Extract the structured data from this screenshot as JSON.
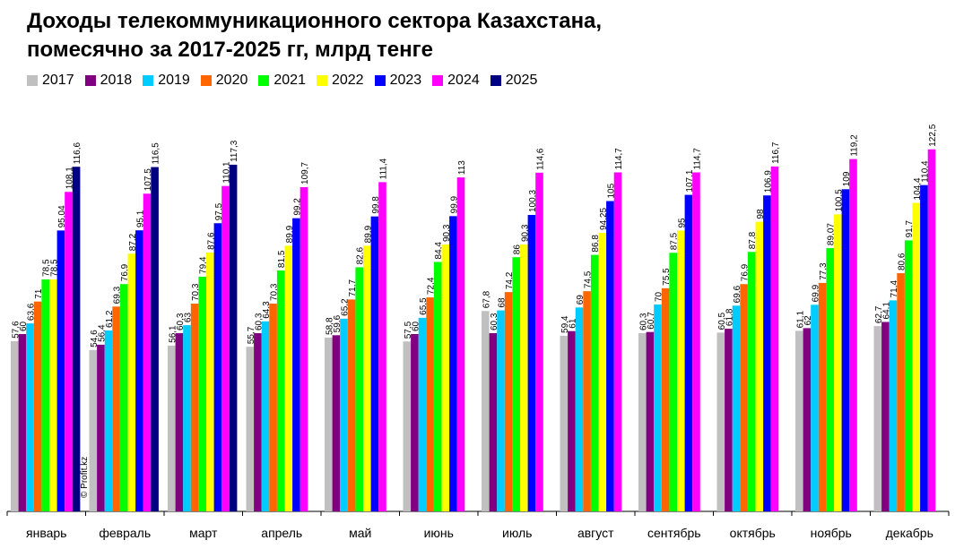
{
  "title_line1": "Доходы телекоммуникационного сектора Казахстана,",
  "title_line2": "помесячно за 2017-2025 гг, млрд тенге",
  "watermark": "© Profit.kz",
  "chart_data": {
    "type": "bar",
    "title": "Доходы телекоммуникационного сектора Казахстана, помесячно за 2017-2025 гг, млрд тенге",
    "xlabel": "",
    "ylabel": "",
    "ylim": [
      0,
      130
    ],
    "grid": false,
    "legend_position": "top-left",
    "categories": [
      "январь",
      "февраль",
      "март",
      "апрель",
      "май",
      "июнь",
      "июль",
      "август",
      "сентябрь",
      "октябрь",
      "ноябрь",
      "декабрь"
    ],
    "series": [
      {
        "name": "2017",
        "color": "#c0c0c0",
        "values": [
          57.6,
          54.6,
          56.1,
          55.7,
          58.8,
          57.5,
          67.8,
          59.4,
          60.3,
          60.5,
          61.1,
          62.7
        ],
        "labels": [
          "57,6",
          "54,6",
          "56,1",
          "55,7",
          "58,8",
          "57,5",
          "67,8",
          "59,4",
          "60,3",
          "60,5",
          "61,1",
          "62,7"
        ]
      },
      {
        "name": "2018",
        "color": "#800080",
        "values": [
          60,
          56.4,
          60.3,
          60.3,
          59.6,
          60,
          60.3,
          61,
          60.7,
          61.8,
          62,
          64.1
        ],
        "labels": [
          "60",
          "56,4",
          "60,3",
          "60,3",
          "59,6",
          "60",
          "60,3",
          "61",
          "60,7",
          "61,8",
          "62",
          "64,1"
        ]
      },
      {
        "name": "2019",
        "color": "#00ccff",
        "values": [
          63.6,
          61.2,
          63,
          64.3,
          65.2,
          65.5,
          68,
          69,
          70,
          69.6,
          69.9,
          71.4
        ],
        "labels": [
          "63,6",
          "61,2",
          "63",
          "64,3",
          "65,2",
          "65,5",
          "68",
          "69",
          "70",
          "69,6",
          "69,9",
          "71,4"
        ]
      },
      {
        "name": "2020",
        "color": "#ff6600",
        "values": [
          71,
          69.3,
          70.3,
          70.3,
          71.7,
          72.4,
          74.2,
          74.5,
          75.5,
          76.9,
          77.3,
          80.6
        ],
        "labels": [
          "71",
          "69,3",
          "70,3",
          "70,3",
          "71,7",
          "72,4",
          "74,2",
          "74,5",
          "75,5",
          "76,9",
          "77,3",
          "80,6"
        ]
      },
      {
        "name": "2021",
        "color": "#00ff00",
        "values": [
          78.5,
          76.9,
          79.4,
          81.5,
          82.6,
          84.4,
          86,
          86.8,
          87.5,
          87.8,
          89.07,
          91.7
        ],
        "labels": [
          "78,5",
          "76,9",
          "79,4",
          "81,5",
          "82,6",
          "84,4",
          "86",
          "86,8",
          "87,5",
          "87,8",
          "89,07",
          "91,7"
        ]
      },
      {
        "name": "2022",
        "color": "#ffff00",
        "values": [
          78.5,
          87.2,
          87.6,
          89.9,
          89.9,
          90.3,
          90.3,
          94.25,
          95,
          98,
          100.5,
          104.4
        ],
        "labels": [
          "78,5",
          "87,2",
          "87,6",
          "89,9",
          "89,9",
          "90,3",
          "90,3",
          "94,25",
          "95",
          "98",
          "100,5",
          "104,4"
        ]
      },
      {
        "name": "2023",
        "color": "#0000ff",
        "values": [
          95.04,
          95.1,
          97.5,
          99.2,
          99.8,
          99.9,
          100.3,
          105,
          107.1,
          106.9,
          109,
          110.4
        ],
        "labels": [
          "95,04",
          "95,1",
          "97,5",
          "99,2",
          "99,8",
          "99,9",
          "100,3",
          "105",
          "107,1",
          "106,9",
          "109",
          "110,4"
        ]
      },
      {
        "name": "2024",
        "color": "#ff00ff",
        "values": [
          108.1,
          107.5,
          110.1,
          109.7,
          111.4,
          113,
          114.6,
          114.7,
          114.7,
          116.7,
          119.2,
          122.5
        ],
        "labels": [
          "108,1",
          "107,5",
          "110,1",
          "109,7",
          "111,4",
          "113",
          "114,6",
          "114,7",
          "114,7",
          "116,7",
          "119,2",
          "122,5"
        ]
      },
      {
        "name": "2025",
        "color": "#000080",
        "values": [
          116.6,
          116.5,
          117.3,
          null,
          null,
          null,
          null,
          null,
          null,
          null,
          null,
          null
        ],
        "labels": [
          "116,6",
          "116,5",
          "117,3",
          null,
          null,
          null,
          null,
          null,
          null,
          null,
          null,
          null
        ]
      }
    ]
  }
}
